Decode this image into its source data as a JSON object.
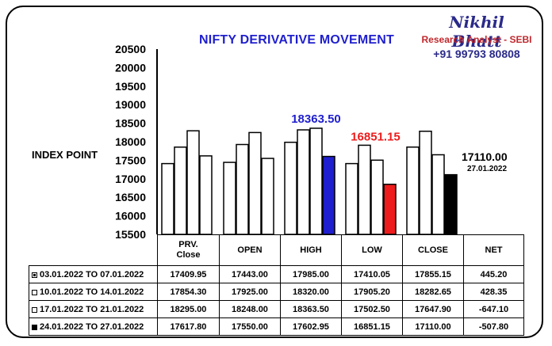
{
  "title": "NIFTY DERIVATIVE MOVEMENT",
  "brand": {
    "name": "Nikhil Bhatt",
    "role": "Research Analyst - SEBI",
    "phone": "+91 99793 80808"
  },
  "colors": {
    "title": "#1f1fcf",
    "high_bar": "#1f1fcf",
    "low_bar": "#ee1c1c",
    "close_bar": "#000000",
    "base_bar": "#ffffff",
    "brand_name": "#2a2a8a",
    "brand_role": "#c0282d"
  },
  "annotations": {
    "high": "18363.50",
    "low": "16851.15",
    "close": "17110.00",
    "close_date": "27.01.2022"
  },
  "chart_data": {
    "type": "bar",
    "title": "NIFTY DERIVATIVE MOVEMENT",
    "ylabel": "INDEX POINT",
    "xlabel": "",
    "ylim": [
      15500,
      20500
    ],
    "yticks": [
      15500,
      16000,
      16500,
      17000,
      17500,
      18000,
      18500,
      19000,
      19500,
      20000,
      20500
    ],
    "categories": [
      "PRV. Close",
      "OPEN",
      "HIGH",
      "LOW",
      "CLOSE"
    ],
    "series": [
      {
        "name": "03.01.2022 TO 07.01.2022",
        "values": [
          17409.95,
          17443.0,
          17985.0,
          17410.05,
          17855.15
        ]
      },
      {
        "name": "10.01.2022 TO 14.01.2022",
        "values": [
          17854.3,
          17925.0,
          18320.0,
          17905.2,
          18282.65
        ]
      },
      {
        "name": "17.01.2022 TO 21.01.2022",
        "values": [
          18295.0,
          18248.0,
          18363.5,
          17502.5,
          17647.9
        ]
      },
      {
        "name": "24.01.2022 TO 27.01.2022",
        "values": [
          17617.8,
          17550.0,
          17602.95,
          16851.15,
          17110.0
        ]
      }
    ],
    "grid": false,
    "legend": "table below chart"
  },
  "table": {
    "columns": [
      "PRV.\nClose",
      "OPEN",
      "HIGH",
      "LOW",
      "CLOSE",
      "NET"
    ],
    "rows": [
      {
        "label": "03.01.2022 TO 07.01.2022",
        "cells": [
          "17409.95",
          "17443.00",
          "17985.00",
          "17410.05",
          "17855.15",
          "445.20"
        ]
      },
      {
        "label": "10.01.2022 TO 14.01.2022",
        "cells": [
          "17854.30",
          "17925.00",
          "18320.00",
          "17905.20",
          "18282.65",
          "428.35"
        ]
      },
      {
        "label": "17.01.2022 TO 21.01.2022",
        "cells": [
          "18295.00",
          "18248.00",
          "18363.50",
          "17502.50",
          "17647.90",
          "-647.10"
        ]
      },
      {
        "label": "24.01.2022 TO 27.01.2022",
        "cells": [
          "17617.80",
          "17550.00",
          "17602.95",
          "16851.15",
          "17110.00",
          "-507.80"
        ]
      }
    ]
  }
}
